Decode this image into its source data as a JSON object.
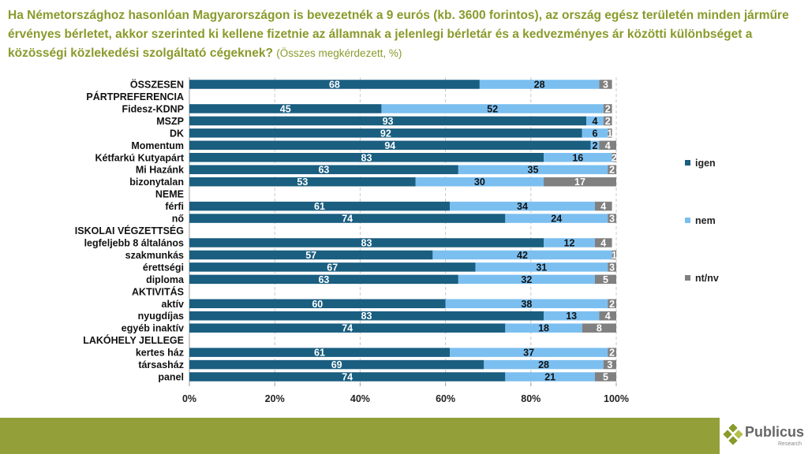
{
  "title": {
    "main": "Ha Németországhoz hasonlóan Magyarországon is bevezetnék a 9 eurós (kb. 3600 forintos), az ország egész területén minden járműre érvényes bérletet, akkor szerinted ki kellene fizetnie az államnak a jelenlegi bérletár és a kedvezményes ár közötti különbséget  a közösségi közlekedési szolgáltató cégeknek?",
    "note": "(Összes megkérdezett, %)"
  },
  "chart_data": {
    "type": "bar",
    "orientation": "horizontal",
    "stacked": "100%",
    "xlim": [
      0,
      100
    ],
    "xticks": [
      "0%",
      "20%",
      "40%",
      "60%",
      "80%",
      "100%"
    ],
    "grid": true,
    "legend_placement": "right",
    "categories": [
      "ÖSSZESEN",
      "PÁRTPREFERENCIA",
      "Fidesz-KDNP",
      "MSZP",
      "DK",
      "Momentum",
      "Kétfarkú Kutyapárt",
      "Mi Hazánk",
      "bizonytalan",
      "NEME",
      "férfi",
      "nő",
      "ISKOLAI VÉGZETTSÉG",
      "legfeljebb 8 általános",
      "szakmunkás",
      "érettségi",
      "diploma",
      "AKTIVITÁS",
      "aktív",
      "nyugdíjas",
      "egyéb inaktív",
      "LAKÓHELY JELLEGE",
      "kertes ház",
      "társasház",
      "panel"
    ],
    "series": [
      {
        "name": "igen",
        "color": "#1a5e80",
        "values": [
          68,
          null,
          45,
          93,
          92,
          94,
          83,
          63,
          53,
          null,
          61,
          74,
          null,
          83,
          57,
          67,
          63,
          null,
          60,
          83,
          74,
          null,
          61,
          69,
          74
        ]
      },
      {
        "name": "nem",
        "color": "#7bbff0",
        "values": [
          28,
          null,
          52,
          4,
          6,
          2,
          16,
          35,
          30,
          null,
          34,
          24,
          null,
          12,
          42,
          31,
          32,
          null,
          38,
          13,
          18,
          null,
          37,
          28,
          21
        ]
      },
      {
        "name": "nt/nv",
        "color": "#808080",
        "values": [
          3,
          null,
          2,
          2,
          1,
          4,
          2,
          2,
          17,
          null,
          4,
          3,
          null,
          4,
          1,
          3,
          5,
          null,
          2,
          4,
          8,
          null,
          2,
          3,
          5
        ]
      }
    ]
  },
  "logo": {
    "name": "Publicus",
    "sub": "Research"
  }
}
